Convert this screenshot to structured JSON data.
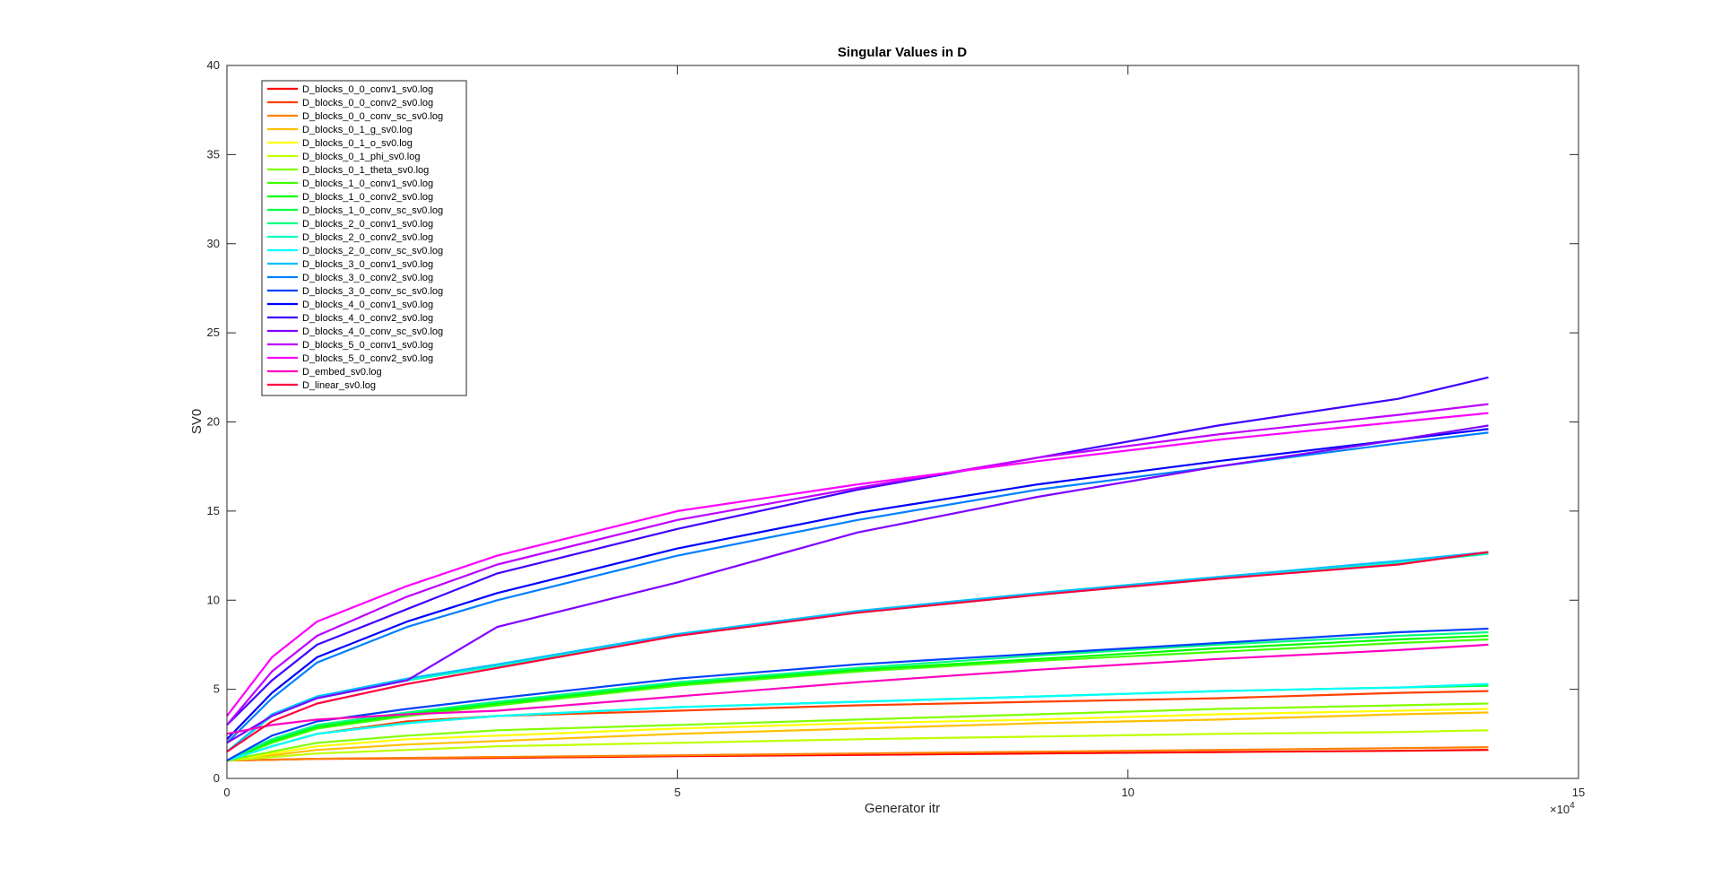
{
  "chart_data": {
    "type": "line",
    "title": "Singular Values in D",
    "xlabel": "Generator itr",
    "ylabel": "SV0",
    "x_multiplier_label": "×10",
    "x_multiplier_exp": "4",
    "xlim": [
      0,
      15
    ],
    "ylim": [
      0,
      40
    ],
    "x_ticks": [
      "0",
      "5",
      "10",
      "15"
    ],
    "y_ticks": [
      "0",
      "5",
      "10",
      "15",
      "20",
      "25",
      "30",
      "35",
      "40"
    ],
    "x_tick_values": [
      0,
      5,
      10,
      15
    ],
    "y_tick_values": [
      0,
      5,
      10,
      15,
      20,
      25,
      30,
      35,
      40
    ],
    "grid": false,
    "legend_position": "top-left",
    "series": [
      {
        "name": "D_blocks_0_0_conv1_sv0.log",
        "color": "#ff0000",
        "x": [
          0,
          0.5,
          1,
          2,
          3,
          5,
          7,
          9,
          11,
          13,
          14
        ],
        "y": [
          1.0,
          1.05,
          1.1,
          1.12,
          1.15,
          1.25,
          1.32,
          1.4,
          1.48,
          1.55,
          1.6
        ]
      },
      {
        "name": "D_blocks_0_0_conv2_sv0.log",
        "color": "#ff4000",
        "x": [
          0,
          0.5,
          1,
          2,
          3,
          5,
          7,
          9,
          11,
          13,
          14
        ],
        "y": [
          1.0,
          1.8,
          2.5,
          3.2,
          3.5,
          3.8,
          4.1,
          4.3,
          4.5,
          4.8,
          4.9
        ]
      },
      {
        "name": "D_blocks_0_0_conv_sc_sv0.log",
        "color": "#ff8000",
        "x": [
          0,
          0.5,
          1,
          2,
          3,
          5,
          7,
          9,
          11,
          13,
          14
        ],
        "y": [
          1.0,
          1.05,
          1.1,
          1.15,
          1.2,
          1.3,
          1.4,
          1.5,
          1.6,
          1.7,
          1.75
        ]
      },
      {
        "name": "D_blocks_0_1_g_sv0.log",
        "color": "#ffbf00",
        "x": [
          0,
          0.5,
          1,
          2,
          3,
          5,
          7,
          9,
          11,
          13,
          14
        ],
        "y": [
          1.0,
          1.3,
          1.6,
          1.9,
          2.1,
          2.5,
          2.8,
          3.1,
          3.3,
          3.6,
          3.7
        ]
      },
      {
        "name": "D_blocks_0_1_o_sv0.log",
        "color": "#ffff00",
        "x": [
          0,
          0.5,
          1,
          2,
          3,
          5,
          7,
          9,
          11,
          13,
          14
        ],
        "y": [
          1.0,
          1.4,
          1.8,
          2.2,
          2.4,
          2.8,
          3.1,
          3.3,
          3.6,
          3.8,
          3.9
        ]
      },
      {
        "name": "D_blocks_0_1_phi_sv0.log",
        "color": "#bfff00",
        "x": [
          0,
          0.5,
          1,
          2,
          3,
          5,
          7,
          9,
          11,
          13,
          14
        ],
        "y": [
          1.0,
          1.2,
          1.4,
          1.6,
          1.8,
          2.0,
          2.2,
          2.35,
          2.5,
          2.6,
          2.7
        ]
      },
      {
        "name": "D_blocks_0_1_theta_sv0.log",
        "color": "#80ff00",
        "x": [
          0,
          0.5,
          1,
          2,
          3,
          5,
          7,
          9,
          11,
          13,
          14
        ],
        "y": [
          1.0,
          1.5,
          2.0,
          2.4,
          2.7,
          3.0,
          3.3,
          3.6,
          3.9,
          4.1,
          4.2
        ]
      },
      {
        "name": "D_blocks_1_0_conv1_sv0.log",
        "color": "#40ff00",
        "x": [
          0,
          0.5,
          1,
          2,
          3,
          5,
          7,
          9,
          11,
          13,
          14
        ],
        "y": [
          1.0,
          2.0,
          2.8,
          3.5,
          4.1,
          5.2,
          6.0,
          6.6,
          7.1,
          7.6,
          7.8
        ]
      },
      {
        "name": "D_blocks_1_0_conv2_sv0.log",
        "color": "#00ff00",
        "x": [
          0,
          0.5,
          1,
          2,
          3,
          5,
          7,
          9,
          11,
          13,
          14
        ],
        "y": [
          1.0,
          2.1,
          2.9,
          3.6,
          4.2,
          5.3,
          6.1,
          6.7,
          7.3,
          7.8,
          8.0
        ]
      },
      {
        "name": "D_blocks_1_0_conv_sc_sv0.log",
        "color": "#00ff40",
        "x": [
          0,
          0.5,
          1,
          2,
          3,
          5,
          7,
          9,
          11,
          13,
          14
        ],
        "y": [
          1.0,
          1.8,
          2.5,
          3.1,
          3.5,
          4.0,
          4.3,
          4.6,
          4.9,
          5.1,
          5.2
        ]
      },
      {
        "name": "D_blocks_2_0_conv1_sv0.log",
        "color": "#00ff80",
        "x": [
          0,
          0.5,
          1,
          2,
          3,
          5,
          7,
          9,
          11,
          13,
          14
        ],
        "y": [
          1.0,
          2.2,
          3.0,
          3.7,
          4.3,
          5.4,
          6.2,
          6.9,
          7.5,
          8.0,
          8.2
        ]
      },
      {
        "name": "D_blocks_2_0_conv2_sv0.log",
        "color": "#00ffbf",
        "x": [
          0,
          0.5,
          1,
          2,
          3,
          5,
          7,
          9,
          11,
          13,
          14
        ],
        "y": [
          1.5,
          3.5,
          4.5,
          5.5,
          6.3,
          8.0,
          9.3,
          10.3,
          11.2,
          12.1,
          12.6
        ]
      },
      {
        "name": "D_blocks_2_0_conv_sc_sv0.log",
        "color": "#00ffff",
        "x": [
          0,
          0.5,
          1,
          2,
          3,
          5,
          7,
          9,
          11,
          13,
          14
        ],
        "y": [
          1.0,
          1.8,
          2.5,
          3.1,
          3.5,
          4.0,
          4.3,
          4.6,
          4.9,
          5.1,
          5.3
        ]
      },
      {
        "name": "D_blocks_3_0_conv1_sv0.log",
        "color": "#00bfff",
        "x": [
          0,
          0.5,
          1,
          2,
          3,
          5,
          7,
          9,
          11,
          13,
          14
        ],
        "y": [
          1.5,
          3.6,
          4.6,
          5.6,
          6.4,
          8.1,
          9.4,
          10.4,
          11.3,
          12.2,
          12.7
        ]
      },
      {
        "name": "D_blocks_3_0_conv2_sv0.log",
        "color": "#0080ff",
        "x": [
          0,
          0.5,
          1,
          2,
          3,
          5,
          7,
          9,
          11,
          13,
          14
        ],
        "y": [
          2.0,
          4.5,
          6.5,
          8.5,
          10.0,
          12.5,
          14.5,
          16.2,
          17.5,
          18.8,
          19.4
        ]
      },
      {
        "name": "D_blocks_3_0_conv_sc_sv0.log",
        "color": "#0040ff",
        "x": [
          0,
          0.5,
          1,
          2,
          3,
          5,
          7,
          9,
          11,
          13,
          14
        ],
        "y": [
          1.0,
          2.4,
          3.2,
          3.9,
          4.5,
          5.6,
          6.4,
          7.0,
          7.6,
          8.2,
          8.4
        ]
      },
      {
        "name": "D_blocks_4_0_conv1_sv0.log",
        "color": "#0000ff",
        "x": [
          0,
          0.5,
          1,
          2,
          3,
          5,
          7,
          9,
          11,
          13,
          14
        ],
        "y": [
          2.2,
          4.8,
          6.8,
          8.8,
          10.4,
          12.9,
          14.9,
          16.5,
          17.8,
          19.0,
          19.6
        ]
      },
      {
        "name": "D_blocks_4_0_conv2_sv0.log",
        "color": "#4000ff",
        "x": [
          0,
          0.5,
          1,
          2,
          3,
          5,
          7,
          9,
          11,
          13,
          14
        ],
        "y": [
          3.0,
          5.5,
          7.5,
          9.5,
          11.5,
          14.0,
          16.2,
          18.0,
          19.8,
          21.3,
          22.5
        ]
      },
      {
        "name": "D_blocks_4_0_conv_sc_sv0.log",
        "color": "#8000ff",
        "x": [
          0,
          0.5,
          1,
          2,
          3,
          5,
          7,
          9,
          11,
          13,
          14
        ],
        "y": [
          2.0,
          3.5,
          4.5,
          5.5,
          8.5,
          11.0,
          13.8,
          15.8,
          17.5,
          19.0,
          19.8
        ]
      },
      {
        "name": "D_blocks_5_0_conv1_sv0.log",
        "color": "#bf00ff",
        "x": [
          0,
          0.5,
          1,
          2,
          3,
          5,
          7,
          9,
          11,
          13,
          14
        ],
        "y": [
          3.0,
          6.0,
          8.0,
          10.2,
          12.0,
          14.5,
          16.3,
          18.0,
          19.3,
          20.4,
          21.0
        ]
      },
      {
        "name": "D_blocks_5_0_conv2_sv0.log",
        "color": "#ff00ff",
        "x": [
          0,
          0.5,
          1,
          2,
          3,
          5,
          7,
          9,
          11,
          13,
          14
        ],
        "y": [
          3.5,
          6.8,
          8.8,
          10.8,
          12.5,
          15.0,
          16.5,
          17.8,
          19.0,
          20.0,
          20.5
        ]
      },
      {
        "name": "D_embed_sv0.log",
        "color": "#ff00bf",
        "x": [
          0,
          0.5,
          1,
          2,
          3,
          5,
          7,
          9,
          11,
          13,
          14
        ],
        "y": [
          2.5,
          3.0,
          3.3,
          3.6,
          3.8,
          4.6,
          5.4,
          6.1,
          6.7,
          7.2,
          7.5
        ]
      },
      {
        "name": "D_linear_sv0.log",
        "color": "#ff0040",
        "x": [
          0,
          0.5,
          1,
          2,
          3,
          5,
          7,
          9,
          11,
          13,
          14
        ],
        "y": [
          1.5,
          3.2,
          4.2,
          5.3,
          6.2,
          8.0,
          9.3,
          10.3,
          11.2,
          12.0,
          12.7
        ]
      }
    ]
  }
}
